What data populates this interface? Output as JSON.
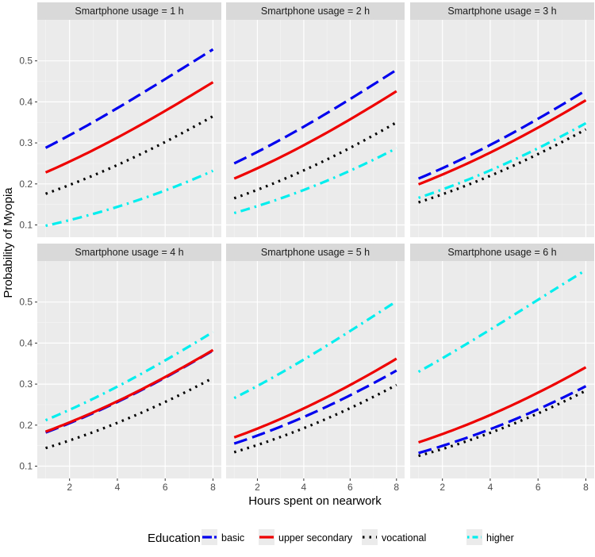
{
  "chart_data": {
    "type": "line",
    "ylabel": "Probability of Myopia",
    "xlabel": "Hours spent on nearwork",
    "xlim": [
      0.65,
      8.35
    ],
    "ylim": [
      0.07,
      0.6
    ],
    "x_ticks": [
      2,
      4,
      6,
      8
    ],
    "x_tick_labels": [
      "2",
      "4",
      "6",
      "8"
    ],
    "y_ticks": [
      0.1,
      0.2,
      0.3,
      0.4,
      0.5
    ],
    "y_tick_labels": [
      "0.1",
      "0.2",
      "0.3",
      "0.4",
      "0.5"
    ],
    "grid": true,
    "legend": {
      "title": "Education",
      "position": "bottom",
      "entries": [
        {
          "name": "basic",
          "color": "#0000ee",
          "dash": "long"
        },
        {
          "name": "upper secondary",
          "color": "#ee0000",
          "dash": "solid"
        },
        {
          "name": "vocational",
          "color": "#000000",
          "dash": "dotted"
        },
        {
          "name": "higher",
          "color": "#00eeee",
          "dash": "dotdash"
        }
      ]
    },
    "x": [
      1,
      8
    ],
    "panels": [
      {
        "title": "Smartphone usage = 1 h",
        "series": [
          {
            "name": "basic",
            "start": 0.288,
            "end": 0.528
          },
          {
            "name": "upper secondary",
            "start": 0.228,
            "end": 0.448
          },
          {
            "name": "vocational",
            "start": 0.176,
            "end": 0.365
          },
          {
            "name": "higher",
            "start": 0.098,
            "end": 0.232
          }
        ]
      },
      {
        "title": "Smartphone usage = 2 h",
        "series": [
          {
            "name": "basic",
            "start": 0.25,
            "end": 0.478
          },
          {
            "name": "upper secondary",
            "start": 0.213,
            "end": 0.426
          },
          {
            "name": "vocational",
            "start": 0.165,
            "end": 0.35
          },
          {
            "name": "higher",
            "start": 0.129,
            "end": 0.287
          }
        ]
      },
      {
        "title": "Smartphone usage = 3 h",
        "series": [
          {
            "name": "basic",
            "start": 0.213,
            "end": 0.428
          },
          {
            "name": "upper secondary",
            "start": 0.199,
            "end": 0.404
          },
          {
            "name": "vocational",
            "start": 0.155,
            "end": 0.333
          },
          {
            "name": "higher",
            "start": 0.166,
            "end": 0.348
          }
        ]
      },
      {
        "title": "Smartphone usage = 4 h",
        "series": [
          {
            "name": "basic",
            "start": 0.182,
            "end": 0.382
          },
          {
            "name": "upper secondary",
            "start": 0.184,
            "end": 0.383
          },
          {
            "name": "vocational",
            "start": 0.144,
            "end": 0.315
          },
          {
            "name": "higher",
            "start": 0.212,
            "end": 0.427
          }
        ]
      },
      {
        "title": "Smartphone usage = 5 h",
        "series": [
          {
            "name": "basic",
            "start": 0.155,
            "end": 0.333
          },
          {
            "name": "upper secondary",
            "start": 0.17,
            "end": 0.362
          },
          {
            "name": "vocational",
            "start": 0.134,
            "end": 0.298
          },
          {
            "name": "higher",
            "start": 0.266,
            "end": 0.502
          }
        ]
      },
      {
        "title": "Smartphone usage = 6 h",
        "series": [
          {
            "name": "basic",
            "start": 0.132,
            "end": 0.295
          },
          {
            "name": "upper secondary",
            "start": 0.158,
            "end": 0.341
          },
          {
            "name": "vocational",
            "start": 0.125,
            "end": 0.284
          },
          {
            "name": "higher",
            "start": 0.33,
            "end": 0.578
          }
        ]
      }
    ]
  }
}
